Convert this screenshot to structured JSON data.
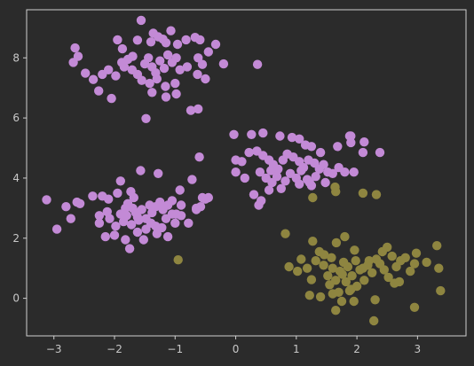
{
  "chart_data": {
    "type": "scatter",
    "title": "",
    "xlabel": "",
    "ylabel": "",
    "xlim": [
      -3.45,
      3.8
    ],
    "ylim": [
      -1.25,
      9.6
    ],
    "xticks": [
      -3,
      -2,
      -1,
      0,
      1,
      2,
      3
    ],
    "yticks": [
      0,
      2,
      4,
      6,
      8
    ],
    "grid": false,
    "legend": "none",
    "background": "#2b2b2b",
    "series": [
      {
        "color": "#c38ad6",
        "points": [
          [
            -1.56,
            9.25
          ],
          [
            -1.36,
            8.82
          ],
          [
            -1.07,
            8.9
          ],
          [
            -2.65,
            8.33
          ],
          [
            -2.68,
            7.85
          ],
          [
            -2.6,
            8.05
          ],
          [
            -1.95,
            8.6
          ],
          [
            -1.87,
            8.3
          ],
          [
            -1.62,
            8.59
          ],
          [
            -1.4,
            8.53
          ],
          [
            -1.28,
            8.7
          ],
          [
            -1.2,
            8.62
          ],
          [
            -1.15,
            8.5
          ],
          [
            -0.96,
            8.45
          ],
          [
            -0.82,
            8.6
          ],
          [
            -0.67,
            8.68
          ],
          [
            -0.59,
            8.6
          ],
          [
            -0.33,
            8.45
          ],
          [
            -0.45,
            8.2
          ],
          [
            -0.62,
            8.0
          ],
          [
            -0.55,
            7.78
          ],
          [
            -0.8,
            7.7
          ],
          [
            -0.63,
            7.45
          ],
          [
            -0.5,
            7.3
          ],
          [
            -0.2,
            7.8
          ],
          [
            0.36,
            7.78
          ],
          [
            -2.48,
            7.49
          ],
          [
            -2.35,
            7.28
          ],
          [
            -2.2,
            7.45
          ],
          [
            -2.1,
            7.6
          ],
          [
            -1.98,
            7.4
          ],
          [
            -1.84,
            7.7
          ],
          [
            -1.78,
            7.95
          ],
          [
            -1.71,
            7.6
          ],
          [
            -1.62,
            7.45
          ],
          [
            -1.55,
            7.25
          ],
          [
            -1.5,
            7.8
          ],
          [
            -1.44,
            8.0
          ],
          [
            -1.38,
            7.7
          ],
          [
            -1.32,
            7.5
          ],
          [
            -1.25,
            7.9
          ],
          [
            -1.18,
            7.65
          ],
          [
            -1.12,
            8.1
          ],
          [
            -1.05,
            7.85
          ],
          [
            -0.98,
            8.0
          ],
          [
            -0.92,
            7.6
          ],
          [
            -1.7,
            8.05
          ],
          [
            -1.88,
            7.85
          ],
          [
            -1.42,
            7.15
          ],
          [
            -1.3,
            7.3
          ],
          [
            -1.16,
            7.05
          ],
          [
            -1.0,
            7.15
          ],
          [
            -2.26,
            6.9
          ],
          [
            -2.05,
            6.65
          ],
          [
            -1.38,
            6.85
          ],
          [
            -1.15,
            6.7
          ],
          [
            -0.98,
            6.8
          ],
          [
            -0.74,
            6.25
          ],
          [
            -0.62,
            6.3
          ],
          [
            -1.48,
            5.98
          ],
          [
            -0.03,
            5.45
          ],
          [
            0.26,
            5.45
          ],
          [
            0.45,
            5.5
          ],
          [
            0.73,
            5.4
          ],
          [
            0.93,
            5.35
          ],
          [
            1.05,
            5.3
          ],
          [
            1.15,
            5.1
          ],
          [
            1.25,
            5.05
          ],
          [
            1.4,
            4.85
          ],
          [
            1.68,
            5.05
          ],
          [
            1.88,
            5.4
          ],
          [
            1.9,
            5.18
          ],
          [
            2.12,
            5.2
          ],
          [
            2.38,
            4.85
          ],
          [
            2.1,
            4.85
          ],
          [
            0.0,
            4.6
          ],
          [
            0.1,
            4.55
          ],
          [
            0.22,
            4.85
          ],
          [
            0.35,
            4.9
          ],
          [
            0.45,
            4.75
          ],
          [
            0.55,
            4.6
          ],
          [
            0.62,
            4.45
          ],
          [
            0.7,
            4.3
          ],
          [
            0.78,
            4.6
          ],
          [
            0.85,
            4.8
          ],
          [
            0.95,
            4.7
          ],
          [
            1.05,
            4.55
          ],
          [
            1.12,
            4.35
          ],
          [
            1.2,
            4.6
          ],
          [
            1.3,
            4.5
          ],
          [
            1.38,
            4.3
          ],
          [
            1.45,
            4.45
          ],
          [
            1.52,
            4.2
          ],
          [
            1.6,
            4.15
          ],
          [
            1.7,
            4.35
          ],
          [
            0.4,
            4.2
          ],
          [
            0.5,
            4.0
          ],
          [
            0.6,
            3.85
          ],
          [
            0.68,
            4.05
          ],
          [
            0.75,
            3.65
          ],
          [
            0.82,
            3.9
          ],
          [
            0.9,
            4.15
          ],
          [
            1.0,
            4.0
          ],
          [
            1.08,
            4.25
          ],
          [
            1.18,
            3.95
          ],
          [
            1.25,
            3.75
          ],
          [
            1.32,
            4.05
          ],
          [
            1.05,
            3.8
          ],
          [
            0.3,
            3.45
          ],
          [
            0.42,
            3.25
          ],
          [
            0.38,
            3.1
          ],
          [
            0.55,
            3.6
          ],
          [
            1.22,
            3.85
          ],
          [
            1.8,
            4.2
          ],
          [
            1.95,
            4.2
          ],
          [
            0.0,
            4.2
          ],
          [
            0.15,
            4.0
          ],
          [
            0.58,
            4.25
          ],
          [
            1.48,
            3.85
          ],
          [
            1.9,
            5.4
          ],
          [
            -3.12,
            3.28
          ],
          [
            -2.8,
            3.05
          ],
          [
            -2.62,
            3.2
          ],
          [
            -2.57,
            3.15
          ],
          [
            -2.36,
            3.4
          ],
          [
            -2.72,
            2.65
          ],
          [
            -2.95,
            2.3
          ],
          [
            -2.2,
            3.4
          ],
          [
            -2.1,
            3.3
          ],
          [
            -1.95,
            3.5
          ],
          [
            -1.9,
            3.9
          ],
          [
            -1.73,
            3.55
          ],
          [
            -1.68,
            3.35
          ],
          [
            -1.57,
            4.25
          ],
          [
            -1.42,
            3.1
          ],
          [
            -1.32,
            3.05
          ],
          [
            -1.25,
            3.2
          ],
          [
            -1.2,
            2.95
          ],
          [
            -1.12,
            3.1
          ],
          [
            -1.05,
            3.25
          ],
          [
            -0.98,
            2.8
          ],
          [
            -0.9,
            3.1
          ],
          [
            -1.28,
            4.15
          ],
          [
            -0.72,
            3.95
          ],
          [
            -0.92,
            3.6
          ],
          [
            -0.65,
            3.0
          ],
          [
            -0.55,
            3.35
          ],
          [
            -0.45,
            3.35
          ],
          [
            -0.58,
            3.05
          ],
          [
            -0.65,
            2.95
          ],
          [
            -2.25,
            2.5
          ],
          [
            -2.25,
            2.75
          ],
          [
            -2.08,
            2.65
          ],
          [
            -1.98,
            2.4
          ],
          [
            -1.9,
            2.8
          ],
          [
            -1.85,
            2.55
          ],
          [
            -1.8,
            2.75
          ],
          [
            -1.72,
            2.45
          ],
          [
            -1.65,
            2.85
          ],
          [
            -1.6,
            2.6
          ],
          [
            -1.55,
            2.95
          ],
          [
            -1.48,
            2.3
          ],
          [
            -1.4,
            2.5
          ],
          [
            -1.32,
            2.4
          ],
          [
            -1.22,
            2.35
          ],
          [
            -1.15,
            2.65
          ],
          [
            -1.05,
            2.8
          ],
          [
            -1.0,
            2.5
          ],
          [
            -0.9,
            2.75
          ],
          [
            -0.78,
            2.5
          ],
          [
            -2.15,
            2.05
          ],
          [
            -2.0,
            2.1
          ],
          [
            -1.82,
            1.95
          ],
          [
            -1.75,
            1.65
          ],
          [
            -1.62,
            2.2
          ],
          [
            -1.52,
            1.95
          ],
          [
            -1.12,
            2.05
          ],
          [
            -1.3,
            2.15
          ],
          [
            -2.12,
            2.88
          ],
          [
            -1.78,
            3.15
          ],
          [
            -1.38,
            2.85
          ],
          [
            -1.48,
            2.65
          ],
          [
            -1.62,
            2.7
          ],
          [
            -1.7,
            3.0
          ],
          [
            -1.82,
            3.0
          ],
          [
            -0.6,
            4.7
          ],
          [
            -0.5,
            3.3
          ]
        ]
      },
      {
        "color": "#8e8540",
        "points": [
          [
            1.27,
            3.35
          ],
          [
            2.1,
            3.5
          ],
          [
            2.32,
            3.45
          ],
          [
            1.64,
            3.7
          ],
          [
            1.65,
            3.55
          ],
          [
            0.82,
            2.15
          ],
          [
            1.27,
            1.9
          ],
          [
            1.46,
            1.45
          ],
          [
            1.66,
            1.85
          ],
          [
            1.8,
            2.05
          ],
          [
            0.88,
            1.05
          ],
          [
            1.08,
            1.3
          ],
          [
            1.18,
            1.0
          ],
          [
            1.25,
            0.62
          ],
          [
            1.32,
            1.25
          ],
          [
            1.38,
            1.55
          ],
          [
            1.45,
            1.1
          ],
          [
            1.52,
            0.75
          ],
          [
            1.58,
            1.35
          ],
          [
            1.65,
            0.6
          ],
          [
            1.72,
            0.9
          ],
          [
            1.78,
            1.2
          ],
          [
            1.85,
            1.05
          ],
          [
            1.92,
            0.75
          ],
          [
            1.98,
            1.25
          ],
          [
            2.05,
            0.95
          ],
          [
            2.12,
            0.6
          ],
          [
            2.18,
            1.1
          ],
          [
            2.25,
            0.85
          ],
          [
            2.32,
            1.3
          ],
          [
            2.38,
            1.15
          ],
          [
            2.45,
            0.95
          ],
          [
            2.52,
            0.7
          ],
          [
            2.58,
            1.4
          ],
          [
            2.65,
            1.05
          ],
          [
            2.72,
            1.25
          ],
          [
            2.8,
            1.35
          ],
          [
            2.88,
            0.9
          ],
          [
            2.95,
            1.15
          ],
          [
            1.55,
            0.45
          ],
          [
            1.7,
            0.2
          ],
          [
            1.82,
            0.55
          ],
          [
            1.9,
            0.3
          ],
          [
            2.0,
            0.4
          ],
          [
            1.22,
            0.1
          ],
          [
            1.4,
            0.05
          ],
          [
            1.6,
            0.15
          ],
          [
            1.75,
            -0.1
          ],
          [
            1.95,
            -0.1
          ],
          [
            2.3,
            -0.05
          ],
          [
            1.65,
            -0.4
          ],
          [
            2.28,
            -0.75
          ],
          [
            2.95,
            -0.3
          ],
          [
            3.15,
            1.2
          ],
          [
            3.32,
            1.75
          ],
          [
            3.35,
            1.0
          ],
          [
            3.38,
            0.25
          ],
          [
            2.98,
            1.5
          ],
          [
            2.5,
            1.7
          ],
          [
            2.62,
            0.5
          ],
          [
            2.7,
            0.55
          ],
          [
            2.42,
            1.55
          ],
          [
            1.96,
            1.6
          ],
          [
            1.02,
            0.9
          ],
          [
            1.88,
            0.25
          ],
          [
            2.2,
            1.25
          ],
          [
            1.6,
            1.0
          ],
          [
            1.76,
            0.8
          ],
          [
            2.1,
            1.0
          ],
          [
            -0.95,
            1.28
          ]
        ]
      }
    ]
  }
}
